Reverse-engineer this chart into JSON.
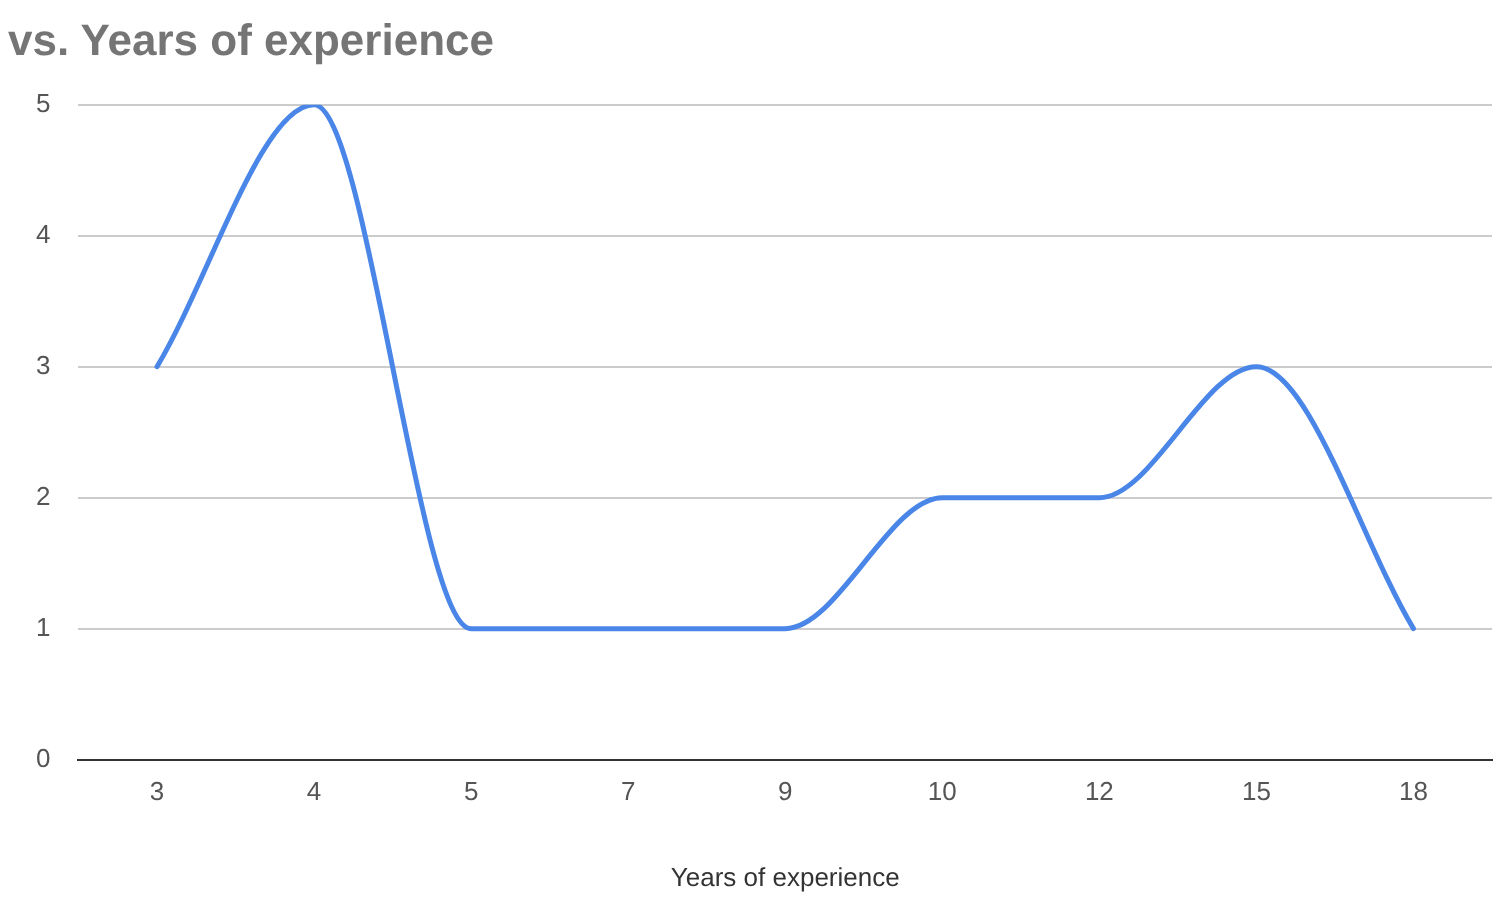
{
  "chart_data": {
    "type": "line",
    "title": "vs. Years of experience",
    "xlabel": "Years of experience",
    "categories": [
      "3",
      "4",
      "5",
      "7",
      "9",
      "10",
      "12",
      "15",
      "18"
    ],
    "series": [
      {
        "color": "#4a86e8",
        "values": [
          3,
          5,
          1,
          1,
          1,
          2,
          2,
          3,
          1
        ]
      }
    ],
    "ylim": [
      0,
      5
    ],
    "yticks": [
      0,
      1,
      2,
      3,
      4,
      5
    ],
    "grid": "y",
    "legend": false,
    "marker": "none"
  }
}
